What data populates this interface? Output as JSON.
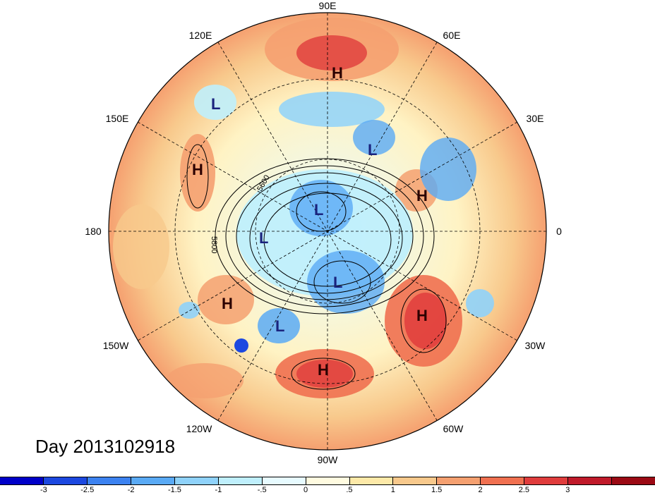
{
  "map": {
    "longitude_labels": [
      "90E",
      "60E",
      "30E",
      "0",
      "30W",
      "60W",
      "90W",
      "120W",
      "150W",
      "180",
      "150E",
      "120E"
    ],
    "contour_labels": [
      "5600",
      "5800"
    ],
    "centres": [
      {
        "type": "H",
        "region": "central-asia"
      },
      {
        "type": "L",
        "region": "west-pacific"
      },
      {
        "type": "H",
        "region": "north-pacific"
      },
      {
        "type": "L",
        "region": "east-siberia"
      },
      {
        "type": "L",
        "region": "north-pole-pacific"
      },
      {
        "type": "L",
        "region": "kara-sea"
      },
      {
        "type": "L",
        "region": "western-russia"
      },
      {
        "type": "H",
        "region": "scandinavia"
      },
      {
        "type": "L",
        "region": "canadian-arctic"
      },
      {
        "type": "L",
        "region": "north-america"
      },
      {
        "type": "H",
        "region": "gulf-of-alaska"
      },
      {
        "type": "H",
        "region": "north-atlantic"
      },
      {
        "type": "H",
        "region": "gulf-of-mexico"
      }
    ],
    "colors": {
      "deep_red": "#c1272d",
      "light_red": "#f08a6a",
      "orange": "#f6b891",
      "cream": "#fff3c4",
      "light_blue": "#cdeefb",
      "mid_blue": "#7ec3ee",
      "deep_blue": "#2b6fd0",
      "label_blue": "#1a237e",
      "label_red": "#2b0000"
    }
  },
  "footer": {
    "day_label": "Day 2013102918"
  },
  "colorbar": {
    "colors": [
      "#0000c8",
      "#1c48e0",
      "#3c82f0",
      "#5aaaf5",
      "#8fd2fa",
      "#bfeffc",
      "#e7fbff",
      "#fffbe0",
      "#fde9a8",
      "#f8c98c",
      "#f5a070",
      "#f07050",
      "#e03c3c",
      "#c01a2a",
      "#9b0a14"
    ],
    "ticks": [
      "-3",
      "-2.5",
      "-2",
      "-1.5",
      "-1",
      "-.5",
      "0",
      ".5",
      "1",
      "1.5",
      "2",
      "2.5",
      "3"
    ]
  }
}
